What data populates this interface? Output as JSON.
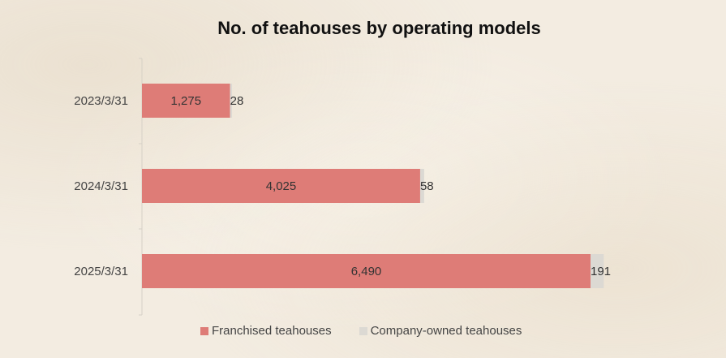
{
  "chart_data": {
    "type": "bar",
    "orientation": "horizontal",
    "stacked": true,
    "title": "No. of teahouses by operating models",
    "categories": [
      "2023/3/31",
      "2024/3/31",
      "2025/3/31"
    ],
    "series": [
      {
        "name": "Franchised teahouses",
        "values": [
          1275,
          4025,
          6490
        ],
        "labels": [
          "1,275",
          "4,025",
          "6,490"
        ],
        "color": "#de7c77"
      },
      {
        "name": "Company-owned teahouses",
        "values": [
          28,
          58,
          191
        ],
        "labels": [
          "28",
          "58",
          "191"
        ],
        "color": "#dcd9d3"
      }
    ],
    "legend_position": "bottom",
    "grid": false
  }
}
